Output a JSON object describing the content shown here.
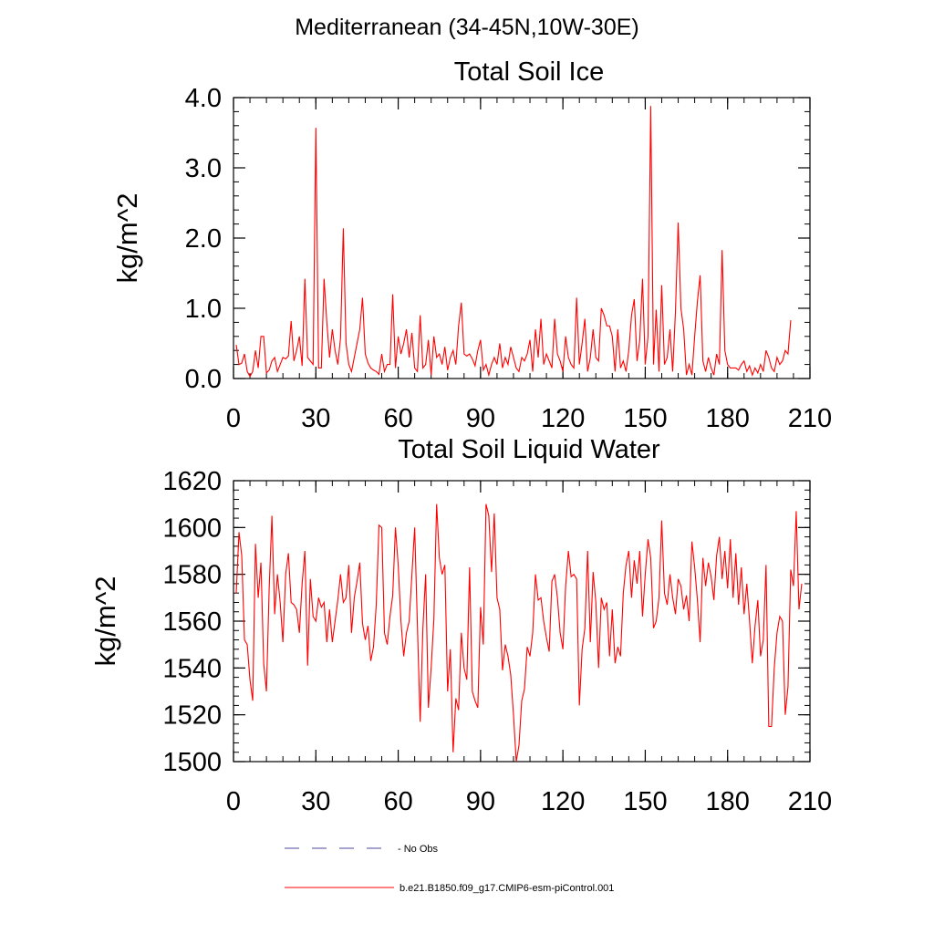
{
  "page": {
    "title": "Mediterranean (34-45N,10W-30E)"
  },
  "colors": {
    "series": "#ff0000",
    "obs": "#4a4a9a",
    "axis": "#000000"
  },
  "legend": {
    "obs_label": "No Obs",
    "model_label": "b.e21.B1850.f09_g17.CMIP6-esm-piControl.001"
  },
  "chart_data": [
    {
      "type": "line",
      "title": "Total Soil Ice",
      "xlabel": "",
      "ylabel": "kg/m^2",
      "xlim": [
        0,
        210
      ],
      "ylim": [
        0.0,
        4.0
      ],
      "x_ticks": [
        0,
        30,
        60,
        90,
        120,
        150,
        180,
        210
      ],
      "x_tick_labels": [
        "0",
        "30",
        "60",
        "90",
        "120",
        "150",
        "180",
        "210"
      ],
      "y_ticks": [
        0.0,
        1.0,
        2.0,
        3.0,
        4.0
      ],
      "y_tick_labels": [
        "0.0",
        "1.0",
        "2.0",
        "3.0",
        "4.0"
      ],
      "x_minor_step": 6,
      "y_minor_step": 0.2,
      "series": [
        {
          "name": "b.e21.B1850.f09_g17.CMIP6-esm-piControl.001",
          "x_start": 1,
          "values": [
            0.48,
            0.2,
            0.22,
            0.35,
            0.1,
            0.03,
            0.1,
            0.4,
            0.15,
            0.6,
            0.6,
            0.08,
            0.12,
            0.25,
            0.3,
            0.1,
            0.2,
            0.3,
            0.28,
            0.32,
            0.82,
            0.25,
            0.4,
            0.6,
            0.18,
            1.42,
            0.3,
            0.25,
            0.2,
            3.57,
            0.15,
            0.15,
            1.42,
            0.8,
            0.3,
            0.7,
            0.4,
            0.2,
            0.58,
            2.14,
            0.5,
            0.2,
            0.1,
            0.3,
            0.5,
            0.7,
            1.15,
            0.35,
            0.22,
            0.15,
            0.12,
            0.1,
            0.06,
            0.35,
            0.1,
            0.2,
            0.2,
            1.2,
            0.15,
            0.6,
            0.35,
            0.5,
            0.7,
            0.3,
            0.65,
            0.15,
            0.1,
            0.9,
            0.15,
            0.2,
            0.55,
            0.05,
            0.6,
            0.3,
            0.35,
            0.2,
            0.45,
            0.12,
            0.3,
            0.4,
            0.2,
            0.75,
            1.08,
            0.35,
            0.32,
            0.35,
            0.28,
            0.18,
            0.4,
            0.55,
            0.12,
            0.2,
            0.05,
            0.2,
            0.3,
            0.2,
            0.5,
            0.15,
            0.3,
            0.2,
            0.45,
            0.3,
            0.15,
            0.1,
            0.3,
            0.25,
            0.35,
            0.55,
            0.1,
            0.7,
            0.3,
            0.85,
            0.2,
            0.35,
            0.25,
            0.15,
            0.85,
            0.35,
            0.25,
            0.1,
            0.6,
            0.3,
            0.2,
            0.15,
            1.15,
            0.2,
            0.5,
            0.85,
            0.1,
            0.3,
            0.7,
            0.3,
            0.25,
            1.0,
            0.9,
            0.75,
            0.75,
            0.6,
            0.1,
            0.7,
            0.15,
            0.25,
            0.1,
            0.4,
            0.9,
            1.13,
            0.25,
            0.55,
            1.42,
            0.2,
            0.6,
            3.88,
            0.2,
            0.98,
            0.1,
            1.33,
            0.2,
            0.3,
            0.7,
            0.1,
            0.95,
            2.22,
            1.0,
            0.7,
            0.05,
            0.2,
            0.05,
            0.6,
            1.1,
            1.47,
            0.25,
            0.1,
            0.3,
            0.15,
            0.05,
            0.35,
            0.2,
            1.83,
            0.4,
            0.2,
            0.15,
            0.15,
            0.15,
            0.12,
            0.2,
            0.25,
            0.1,
            0.18,
            0.05,
            0.15,
            0.08,
            0.2,
            0.1,
            0.4,
            0.3,
            0.15,
            0.1,
            0.3,
            0.2,
            0.25,
            0.4,
            0.35,
            0.83
          ]
        }
      ]
    },
    {
      "type": "line",
      "title": "Total Soil Liquid Water",
      "xlabel": "",
      "ylabel": "kg/m^2",
      "xlim": [
        0,
        210
      ],
      "ylim": [
        1500,
        1620
      ],
      "x_ticks": [
        0,
        30,
        60,
        90,
        120,
        150,
        180,
        210
      ],
      "x_tick_labels": [
        "0",
        "30",
        "60",
        "90",
        "120",
        "150",
        "180",
        "210"
      ],
      "y_ticks": [
        1500,
        1520,
        1540,
        1560,
        1580,
        1600,
        1620
      ],
      "y_tick_labels": [
        "1500",
        "1520",
        "1540",
        "1560",
        "1580",
        "1600",
        "1620"
      ],
      "x_minor_step": 6,
      "y_minor_step": 4,
      "series": [
        {
          "name": "b.e21.B1850.f09_g17.CMIP6-esm-piControl.001",
          "x_start": 1,
          "values": [
            1572,
            1598,
            1588,
            1552,
            1550,
            1535,
            1526,
            1593,
            1570,
            1585,
            1542,
            1530,
            1574,
            1605,
            1563,
            1580,
            1568,
            1551,
            1580,
            1589,
            1568,
            1567,
            1565,
            1555,
            1576,
            1590,
            1541,
            1578,
            1562,
            1560,
            1570,
            1566,
            1568,
            1551,
            1565,
            1551,
            1560,
            1569,
            1580,
            1568,
            1570,
            1584,
            1555,
            1570,
            1577,
            1585,
            1559,
            1552,
            1558,
            1543,
            1549,
            1567,
            1601,
            1600,
            1555,
            1550,
            1562,
            1571,
            1600,
            1584,
            1560,
            1545,
            1555,
            1560,
            1580,
            1600,
            1558,
            1517,
            1557,
            1580,
            1523,
            1540,
            1561,
            1610,
            1587,
            1580,
            1584,
            1530,
            1548,
            1504,
            1527,
            1522,
            1555,
            1540,
            1535,
            1583,
            1530,
            1526,
            1523,
            1566,
            1550,
            1610,
            1605,
            1581,
            1606,
            1570,
            1565,
            1539,
            1550,
            1545,
            1537,
            1520,
            1500,
            1507,
            1526,
            1531,
            1549,
            1545,
            1555,
            1580,
            1569,
            1570,
            1560,
            1553,
            1547,
            1577,
            1580,
            1570,
            1555,
            1548,
            1575,
            1590,
            1579,
            1580,
            1578,
            1524,
            1548,
            1557,
            1590,
            1551,
            1581,
            1568,
            1540,
            1570,
            1565,
            1568,
            1545,
            1565,
            1542,
            1549,
            1545,
            1572,
            1584,
            1590,
            1570,
            1586,
            1576,
            1590,
            1562,
            1580,
            1595,
            1587,
            1557,
            1560,
            1570,
            1603,
            1572,
            1567,
            1580,
            1570,
            1563,
            1578,
            1575,
            1565,
            1571,
            1560,
            1594,
            1583,
            1569,
            1551,
            1587,
            1575,
            1585,
            1579,
            1569,
            1588,
            1596,
            1578,
            1590,
            1574,
            1595,
            1570,
            1589,
            1567,
            1583,
            1563,
            1576,
            1560,
            1542,
            1558,
            1569,
            1545,
            1552,
            1584,
            1515,
            1515,
            1540,
            1555,
            1562,
            1560,
            1520,
            1532,
            1582,
            1575,
            1607,
            1565,
            1576
          ]
        }
      ]
    }
  ]
}
